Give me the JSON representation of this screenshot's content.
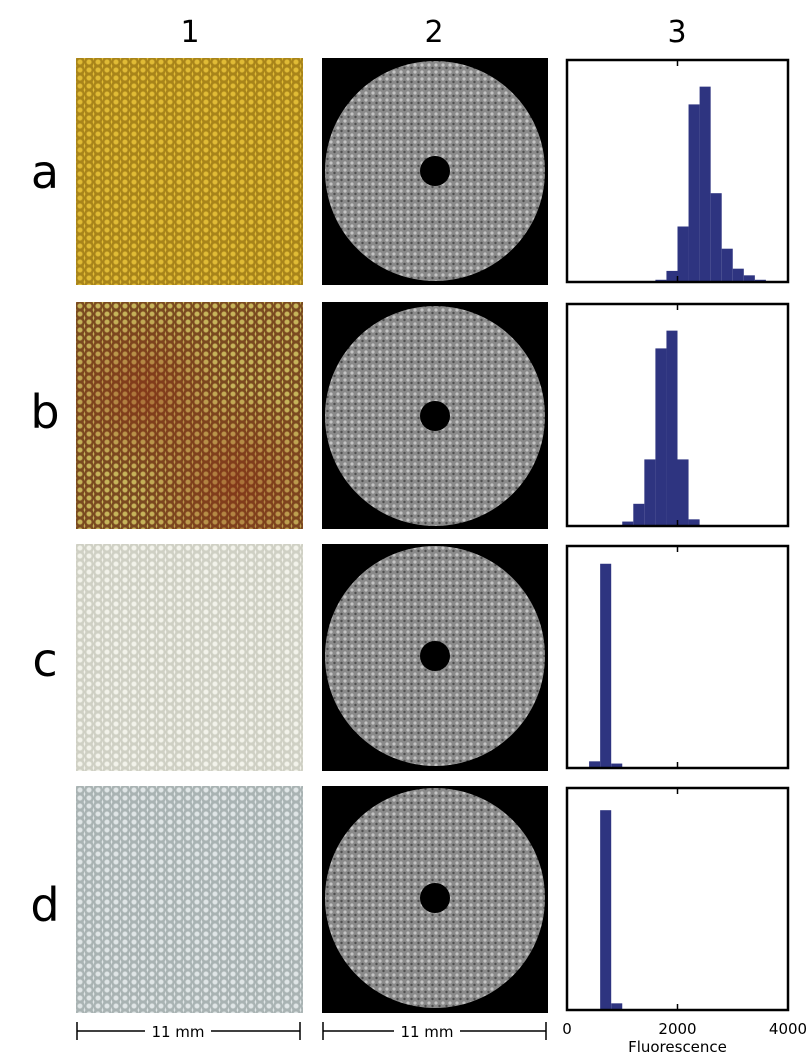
{
  "columns": [
    "1",
    "2",
    "3"
  ],
  "rows": [
    "a",
    "b",
    "c",
    "d"
  ],
  "scale_bars": [
    "11 mm",
    "11 mm"
  ],
  "chart_data": [
    {
      "type": "histogram",
      "color": "#2e3480",
      "xlim": [
        0,
        4000
      ],
      "ylim": [
        0,
        100
      ],
      "bins": [
        0,
        200,
        400,
        600,
        800,
        1000,
        1200,
        1400,
        1600,
        1800,
        2000,
        2200,
        2400,
        2600,
        2800,
        3000,
        3200,
        3400,
        3600,
        3800,
        4000
      ],
      "values": [
        0,
        0,
        0,
        0,
        0,
        0,
        0,
        0,
        1,
        5,
        25,
        80,
        88,
        40,
        15,
        6,
        3,
        1,
        0,
        0
      ]
    },
    {
      "type": "histogram",
      "color": "#2e3480",
      "xlim": [
        0,
        4000
      ],
      "ylim": [
        0,
        100
      ],
      "bins": [
        0,
        200,
        400,
        600,
        800,
        1000,
        1200,
        1400,
        1600,
        1800,
        2000,
        2200,
        2400,
        2600,
        2800,
        3000,
        3200,
        3400,
        3600,
        3800,
        4000
      ],
      "values": [
        0,
        0,
        0,
        0,
        0,
        2,
        10,
        30,
        80,
        88,
        30,
        3,
        0,
        0,
        0,
        0,
        0,
        0,
        0,
        0
      ]
    },
    {
      "type": "histogram",
      "color": "#2e3480",
      "xlim": [
        0,
        4000
      ],
      "ylim": [
        0,
        100
      ],
      "bins": [
        0,
        200,
        400,
        600,
        800,
        1000,
        1200,
        1400,
        1600,
        1800,
        2000,
        2200,
        2400,
        2600,
        2800,
        3000,
        3200,
        3400,
        3600,
        3800,
        4000
      ],
      "values": [
        0,
        0,
        3,
        92,
        2,
        0,
        0,
        0,
        0,
        0,
        0,
        0,
        0,
        0,
        0,
        0,
        0,
        0,
        0,
        0
      ]
    },
    {
      "type": "histogram",
      "color": "#2e3480",
      "xlim": [
        0,
        4000
      ],
      "ylim": [
        0,
        100
      ],
      "bins": [
        0,
        200,
        400,
        600,
        800,
        1000,
        1200,
        1400,
        1600,
        1800,
        2000,
        2200,
        2400,
        2600,
        2800,
        3000,
        3200,
        3400,
        3600,
        3800,
        4000
      ],
      "values": [
        0,
        0,
        0,
        90,
        3,
        0,
        0,
        0,
        0,
        0,
        0,
        0,
        0,
        0,
        0,
        0,
        0,
        0,
        0,
        0
      ],
      "xticks": [
        0,
        2000,
        4000
      ],
      "xlabel": "Fluorescence"
    }
  ]
}
